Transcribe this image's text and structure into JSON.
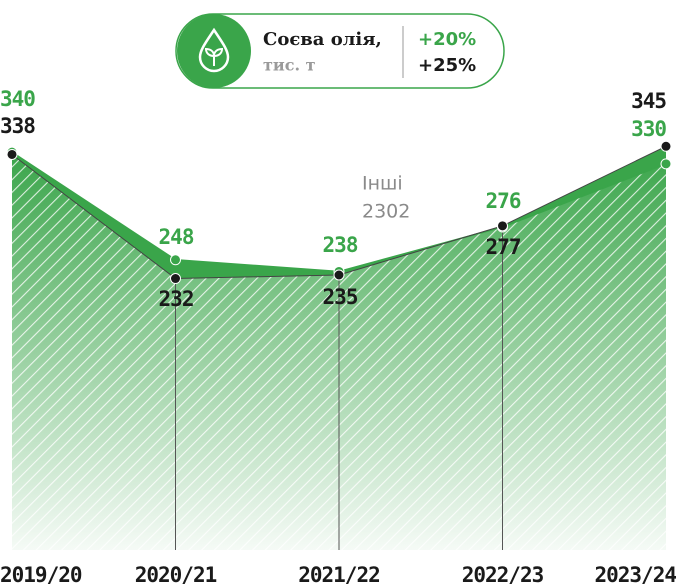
{
  "chart_data": {
    "type": "line",
    "title": "Соєва олія,",
    "subtitle": "тис. т",
    "categories": [
      "2019/20",
      "2020/21",
      "2021/22",
      "2022/23",
      "2023/24"
    ],
    "series": [
      {
        "color": "#3aa54a",
        "change": "+20%",
        "values": [
          340,
          248,
          238,
          276,
          330
        ]
      },
      {
        "color": "#1a1a1a",
        "change": "+25%",
        "values": [
          338,
          232,
          235,
          277,
          345
        ]
      }
    ],
    "annotation": [
      "Інші",
      "2302"
    ],
    "ylim": [
      0,
      470
    ]
  }
}
